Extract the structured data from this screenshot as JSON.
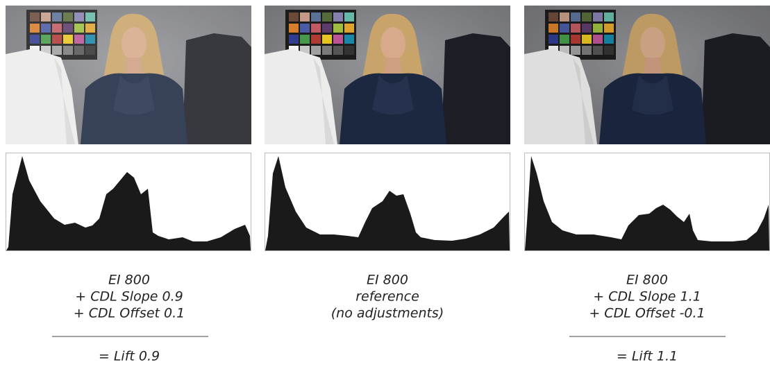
{
  "panels": [
    {
      "lines": [
        "EI 800",
        "+ CDL Slope 0.9",
        "+ CDL Offset 0.1"
      ],
      "result": "= Lift 0.9"
    },
    {
      "lines": [
        "EI 800",
        "reference",
        "(no adjustments)"
      ]
    },
    {
      "lines": [
        "EI 800",
        "+ CDL Slope 1.1",
        "+ CDL Offset -0.1"
      ],
      "result": "= Lift 1.1"
    }
  ]
}
